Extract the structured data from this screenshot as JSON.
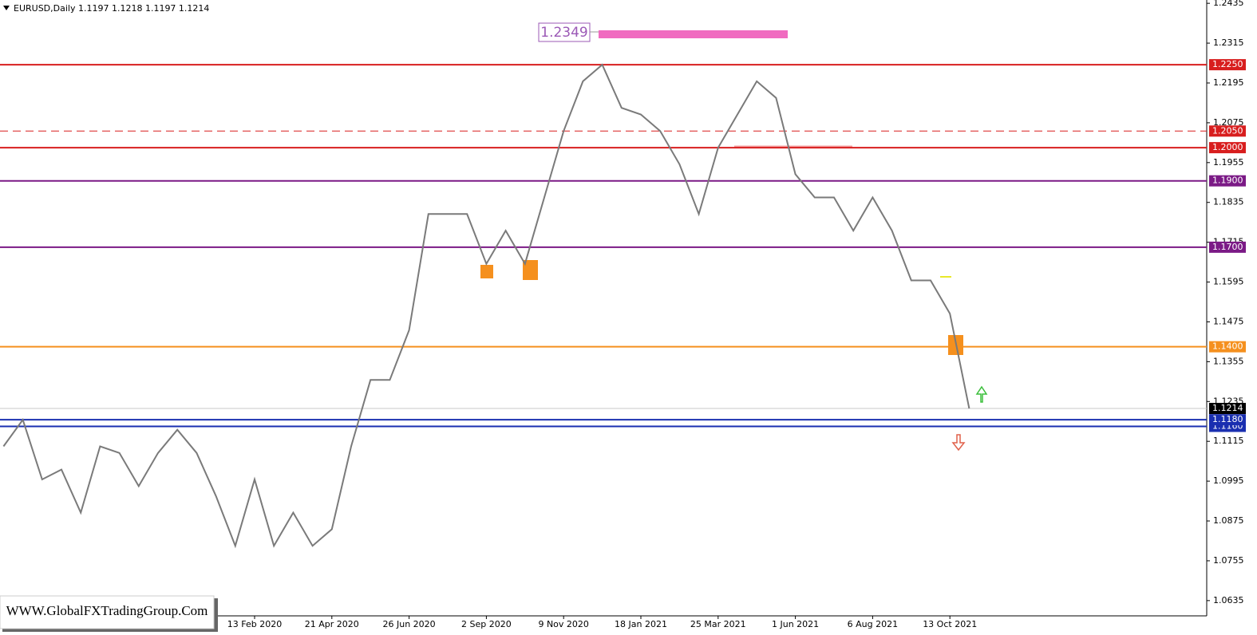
{
  "chart_data": {
    "type": "line",
    "title": "EURUSD,Daily  1.1197 1.1218 1.1197 1.1214",
    "annotation": "1.2349",
    "watermark": "WWW.GlobalFXTradingGroup.Com",
    "categories": [
      null,
      null,
      null,
      null,
      null,
      null,
      null,
      null,
      null,
      null,
      null,
      null,
      null,
      "13 Feb 2020",
      null,
      null,
      null,
      "21 Apr 2020",
      null,
      null,
      null,
      "26 Jun 2020",
      null,
      null,
      null,
      "2 Sep 2020",
      null,
      null,
      null,
      "9 Nov 2020",
      null,
      null,
      null,
      "18 Jan 2021",
      null,
      null,
      null,
      "25 Mar 2021",
      null,
      null,
      null,
      "1 Jun 2021",
      null,
      null,
      null,
      "6 Aug 2021",
      null,
      null,
      null,
      "13 Oct 2021",
      null
    ],
    "series": [
      {
        "color": "#7a7a7a",
        "values": [
          1.11,
          1.118,
          1.1,
          1.103,
          1.09,
          1.11,
          1.108,
          1.098,
          1.108,
          1.115,
          1.108,
          1.095,
          1.08,
          1.1,
          1.08,
          1.09,
          1.08,
          1.085,
          1.11,
          1.13,
          1.13,
          1.145,
          1.18,
          1.18,
          1.18,
          1.165,
          1.175,
          1.165,
          1.185,
          1.205,
          1.22,
          1.225,
          1.212,
          1.21,
          1.205,
          1.195,
          1.18,
          1.2,
          1.21,
          1.22,
          1.215,
          1.192,
          1.185,
          1.185,
          1.175,
          1.185,
          1.175,
          1.16,
          1.16,
          1.15,
          1.1214
        ]
      }
    ],
    "ylim": [
      1.0589,
      1.2445
    ],
    "yticks": [
      1.2435,
      1.2315,
      1.2195,
      1.2075,
      1.1955,
      1.1835,
      1.1715,
      1.1595,
      1.1475,
      1.1355,
      1.1235,
      1.1115,
      1.0995,
      1.0875,
      1.0755,
      1.0635
    ],
    "levels": [
      {
        "value": 1.225,
        "label": "1.2250",
        "color": "#d81e1e"
      },
      {
        "value": 1.205,
        "label": "1.2050",
        "color": "#d81e1e",
        "style": "dashed"
      },
      {
        "value": 1.2,
        "label": "1.2000",
        "color": "#d81e1e"
      },
      {
        "value": 1.19,
        "label": "1.1900",
        "color": "#7b1a86"
      },
      {
        "value": 1.17,
        "label": "1.1700",
        "color": "#7b1a86"
      },
      {
        "value": 1.14,
        "label": "1.1400",
        "color": "#f5901e"
      },
      {
        "value": 1.116,
        "label": "1.1160",
        "color": "#1a2fb0"
      },
      {
        "value": 1.118,
        "label": "1.1180",
        "color": "#1a2fb0"
      },
      {
        "value": 1.1214,
        "label": "1.1214",
        "color": "#000000"
      }
    ]
  }
}
